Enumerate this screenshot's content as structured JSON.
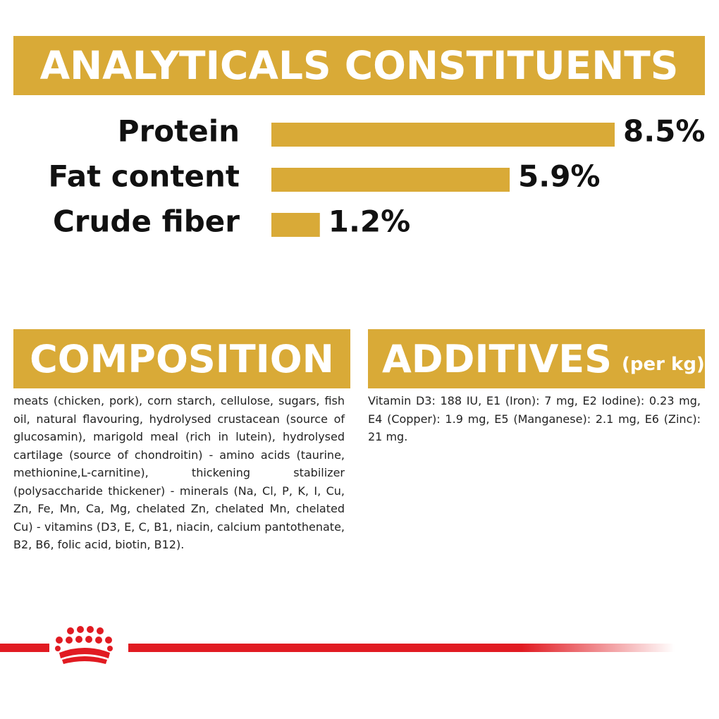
{
  "analytical": {
    "title": "ANALYTICALS CONSTITUENTS"
  },
  "chart_data": {
    "type": "bar",
    "orientation": "horizontal",
    "categories": [
      "Protein",
      "Fat content",
      "Crude fiber"
    ],
    "values": [
      8.5,
      5.9,
      1.2
    ],
    "value_labels": [
      "8.5%",
      "5.9%",
      "1.2%"
    ],
    "unit": "%",
    "xlim": [
      0,
      8.5
    ],
    "grid": false,
    "legend": "none"
  },
  "composition": {
    "title": "COMPOSITION",
    "text": "meats (chicken, pork), corn starch, cellulose, sugars, fish oil, natural flavouring, hydrolysed crustacean (source of glucosamin), marigold meal (rich in lutein), hydrolysed cartilage (source of chondroitin) - amino acids (taurine, methionine,L-carnitine), thickening stabilizer (polysaccharide thickener) - minerals (Na, Cl, P, K, I, Cu, Zn, Fe, Mn, Ca, Mg, chelated Zn, chelated Mn, chelated Cu) - vitamins (D3, E, C, B1, niacin, calcium pantothenate, B2, B6, folic acid, biotin, B12)."
  },
  "additives": {
    "title": "ADDITIVES",
    "suffix": "(per kg)",
    "text": "Vitamin D3: 188 IU, E1 (Iron): 7 mg, E2 Iodine): 0.23 mg, E4 (Copper): 1.9 mg, E5 (Manganese): 2.1 mg, E6 (Zinc): 21 mg."
  },
  "colors": {
    "gold": "#D9AA37",
    "red": "#E11B22",
    "text": "#111111"
  },
  "brand": {
    "logo": "crown-icon"
  }
}
